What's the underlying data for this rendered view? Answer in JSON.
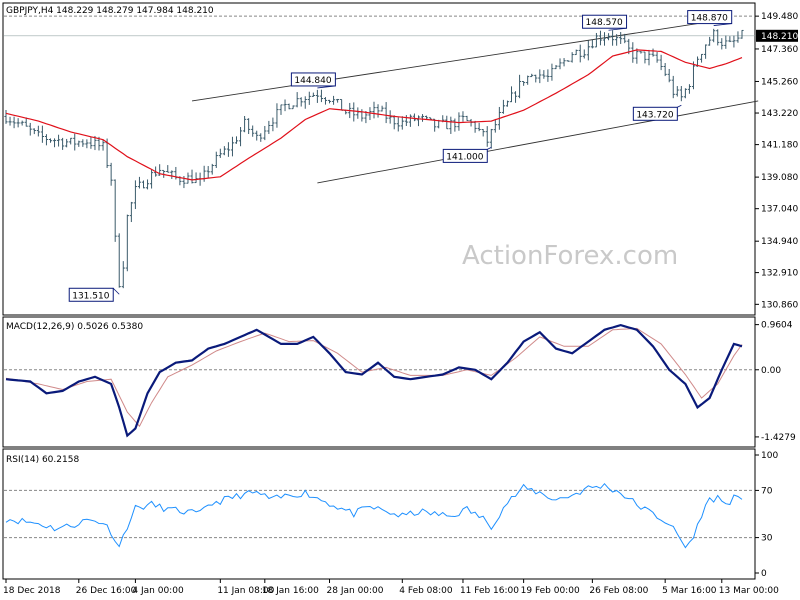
{
  "chart_data": {
    "type": "candlestick",
    "colors": {
      "price": "#3a5a6a",
      "ma": "#e0101a",
      "channel": "#333333",
      "macd": "#0a1a7a",
      "signal": "#d08a8a",
      "rsi": "#1e90ff",
      "grid_dash": "#888888",
      "label_box": "#0a1a7a"
    },
    "watermark": "ActionForex.com",
    "price_panel": {
      "title": "GBPJPY,H4  148.229 148.279 147.984 148.210",
      "ylim": [
        130.3,
        150.2
      ],
      "ticks": [
        "149.480",
        "147.360",
        "145.260",
        "143.220",
        "141.180",
        "139.080",
        "137.040",
        "134.940",
        "132.910",
        "130.860"
      ],
      "tick_values": [
        149.48,
        147.36,
        145.26,
        143.22,
        141.18,
        139.08,
        137.04,
        134.94,
        132.91,
        130.86
      ],
      "current_price": "148.210",
      "current_value": 148.21,
      "dashed_level": 149.48,
      "annotations": [
        {
          "text": "131.510",
          "bar": 28,
          "value": 131.51
        },
        {
          "text": "144.840",
          "bar": 77,
          "value": 144.84
        },
        {
          "text": "141.000",
          "bar": 120,
          "value": 141.0
        },
        {
          "text": "148.570",
          "bar": 149,
          "value": 148.57
        },
        {
          "text": "143.720",
          "bar": 167,
          "value": 143.72
        },
        {
          "text": "148.870",
          "bar": 175,
          "value": 148.87
        }
      ],
      "channel_lines": [
        {
          "from": [
            46,
            144.0
          ],
          "to": [
            176,
            149.2
          ]
        },
        {
          "from": [
            77,
            138.7
          ],
          "to": [
            186,
            144.0
          ]
        }
      ]
    },
    "macd_panel": {
      "title": "MACD(12,26,9) 0.5026 0.5380",
      "ylim": [
        -1.6,
        1.08
      ],
      "ticks": [
        "0.9604",
        "0.00",
        "-1.4279"
      ],
      "tick_values": [
        0.9604,
        0.0,
        -1.4279
      ]
    },
    "rsi_panel": {
      "title": "RSI(14) 60.2158",
      "ylim": [
        0,
        100
      ],
      "ticks": [
        "100",
        "70",
        "30",
        "0"
      ],
      "tick_values": [
        100,
        70,
        30,
        0
      ]
    },
    "x_labels": [
      "18 Dec 2018",
      "26 Dec 16:00",
      "4 Jan 00:00",
      "11 Jan 08:00",
      "18 Jan 16:00",
      "28 Jan 00:00",
      "4 Feb 08:00",
      "11 Feb 16:00",
      "19 Feb 00:00",
      "26 Feb 08:00",
      "5 Mar 16:00",
      "13 Mar 00:00"
    ],
    "x_label_bars": [
      0,
      18,
      32,
      53,
      64,
      80,
      98,
      113,
      128,
      145,
      163,
      177
    ],
    "n_bars": 183,
    "price_anchors": [
      [
        0,
        143.0
      ],
      [
        4,
        142.4
      ],
      [
        8,
        141.7
      ],
      [
        12,
        141.5
      ],
      [
        16,
        141.3
      ],
      [
        20,
        141.4
      ],
      [
        24,
        141.0
      ],
      [
        26,
        139.0
      ],
      [
        27,
        135.0
      ],
      [
        28,
        132.3
      ],
      [
        29,
        133.5
      ],
      [
        30,
        136.5
      ],
      [
        32,
        138.2
      ],
      [
        35,
        139.0
      ],
      [
        38,
        139.6
      ],
      [
        42,
        139.0
      ],
      [
        46,
        139.0
      ],
      [
        48,
        138.7
      ],
      [
        50,
        139.6
      ],
      [
        53,
        140.5
      ],
      [
        56,
        141.2
      ],
      [
        59,
        142.5
      ],
      [
        62,
        141.6
      ],
      [
        65,
        142.6
      ],
      [
        69,
        143.7
      ],
      [
        73,
        144.2
      ],
      [
        77,
        144.5
      ],
      [
        80,
        144.2
      ],
      [
        84,
        143.3
      ],
      [
        88,
        143.0
      ],
      [
        92,
        143.4
      ],
      [
        95,
        142.8
      ],
      [
        98,
        142.6
      ],
      [
        102,
        142.9
      ],
      [
        106,
        142.4
      ],
      [
        110,
        142.5
      ],
      [
        113,
        142.8
      ],
      [
        116,
        142.4
      ],
      [
        119,
        141.4
      ],
      [
        122,
        143.0
      ],
      [
        125,
        144.2
      ],
      [
        128,
        145.4
      ],
      [
        131,
        145.8
      ],
      [
        134,
        145.5
      ],
      [
        137,
        146.3
      ],
      [
        140,
        147.1
      ],
      [
        143,
        147.3
      ],
      [
        146,
        148.1
      ],
      [
        149,
        148.3
      ],
      [
        152,
        147.8
      ],
      [
        155,
        147.0
      ],
      [
        158,
        146.9
      ],
      [
        161,
        146.6
      ],
      [
        163,
        145.8
      ],
      [
        165,
        144.6
      ],
      [
        167,
        144.2
      ],
      [
        169,
        145.2
      ],
      [
        171,
        146.8
      ],
      [
        173,
        147.7
      ],
      [
        175,
        148.3
      ],
      [
        177,
        147.8
      ],
      [
        179,
        147.6
      ],
      [
        182,
        148.21
      ]
    ],
    "ma_anchors": [
      [
        0,
        143.2
      ],
      [
        8,
        142.7
      ],
      [
        16,
        142.0
      ],
      [
        24,
        141.5
      ],
      [
        30,
        140.4
      ],
      [
        38,
        139.3
      ],
      [
        46,
        138.9
      ],
      [
        53,
        139.1
      ],
      [
        60,
        140.3
      ],
      [
        68,
        141.6
      ],
      [
        74,
        142.8
      ],
      [
        80,
        143.5
      ],
      [
        88,
        143.3
      ],
      [
        96,
        143.0
      ],
      [
        104,
        142.8
      ],
      [
        112,
        142.6
      ],
      [
        120,
        142.7
      ],
      [
        128,
        143.4
      ],
      [
        136,
        144.5
      ],
      [
        144,
        145.7
      ],
      [
        150,
        146.9
      ],
      [
        156,
        147.3
      ],
      [
        162,
        147.2
      ],
      [
        168,
        146.5
      ],
      [
        174,
        146.1
      ],
      [
        178,
        146.4
      ],
      [
        182,
        146.8
      ]
    ],
    "macd_anchors": [
      [
        0,
        -0.2
      ],
      [
        6,
        -0.25
      ],
      [
        10,
        -0.5
      ],
      [
        14,
        -0.45
      ],
      [
        18,
        -0.25
      ],
      [
        22,
        -0.15
      ],
      [
        26,
        -0.3
      ],
      [
        28,
        -0.8
      ],
      [
        30,
        -1.4
      ],
      [
        32,
        -1.25
      ],
      [
        35,
        -0.5
      ],
      [
        38,
        -0.05
      ],
      [
        42,
        0.15
      ],
      [
        46,
        0.2
      ],
      [
        50,
        0.45
      ],
      [
        54,
        0.55
      ],
      [
        58,
        0.7
      ],
      [
        62,
        0.85
      ],
      [
        64,
        0.75
      ],
      [
        68,
        0.55
      ],
      [
        72,
        0.55
      ],
      [
        76,
        0.7
      ],
      [
        80,
        0.35
      ],
      [
        84,
        -0.05
      ],
      [
        88,
        -0.1
      ],
      [
        92,
        0.15
      ],
      [
        96,
        -0.15
      ],
      [
        100,
        -0.2
      ],
      [
        104,
        -0.15
      ],
      [
        108,
        -0.1
      ],
      [
        112,
        0.05
      ],
      [
        116,
        0.0
      ],
      [
        120,
        -0.2
      ],
      [
        124,
        0.15
      ],
      [
        128,
        0.6
      ],
      [
        132,
        0.8
      ],
      [
        136,
        0.45
      ],
      [
        140,
        0.35
      ],
      [
        144,
        0.6
      ],
      [
        148,
        0.85
      ],
      [
        152,
        0.95
      ],
      [
        156,
        0.85
      ],
      [
        160,
        0.5
      ],
      [
        164,
        0.0
      ],
      [
        168,
        -0.3
      ],
      [
        171,
        -0.8
      ],
      [
        174,
        -0.6
      ],
      [
        177,
        0.0
      ],
      [
        180,
        0.55
      ],
      [
        182,
        0.5
      ]
    ],
    "signal_anchors": [
      [
        0,
        -0.18
      ],
      [
        8,
        -0.3
      ],
      [
        14,
        -0.42
      ],
      [
        20,
        -0.25
      ],
      [
        26,
        -0.2
      ],
      [
        30,
        -0.9
      ],
      [
        33,
        -1.2
      ],
      [
        36,
        -0.7
      ],
      [
        40,
        -0.15
      ],
      [
        46,
        0.1
      ],
      [
        52,
        0.4
      ],
      [
        58,
        0.6
      ],
      [
        64,
        0.78
      ],
      [
        70,
        0.6
      ],
      [
        76,
        0.62
      ],
      [
        82,
        0.35
      ],
      [
        88,
        -0.05
      ],
      [
        94,
        0.05
      ],
      [
        100,
        -0.12
      ],
      [
        108,
        -0.12
      ],
      [
        114,
        0.0
      ],
      [
        120,
        -0.12
      ],
      [
        126,
        0.25
      ],
      [
        132,
        0.7
      ],
      [
        138,
        0.5
      ],
      [
        144,
        0.5
      ],
      [
        150,
        0.85
      ],
      [
        156,
        0.88
      ],
      [
        162,
        0.55
      ],
      [
        168,
        -0.1
      ],
      [
        172,
        -0.6
      ],
      [
        176,
        -0.3
      ],
      [
        180,
        0.3
      ],
      [
        182,
        0.54
      ]
    ],
    "rsi_anchors": [
      [
        0,
        46
      ],
      [
        4,
        44
      ],
      [
        8,
        42
      ],
      [
        12,
        38
      ],
      [
        16,
        40
      ],
      [
        20,
        45
      ],
      [
        24,
        43
      ],
      [
        26,
        35
      ],
      [
        28,
        22
      ],
      [
        30,
        40
      ],
      [
        32,
        55
      ],
      [
        36,
        58
      ],
      [
        40,
        54
      ],
      [
        44,
        52
      ],
      [
        48,
        50
      ],
      [
        50,
        58
      ],
      [
        54,
        62
      ],
      [
        58,
        66
      ],
      [
        62,
        68
      ],
      [
        66,
        62
      ],
      [
        70,
        66
      ],
      [
        74,
        68
      ],
      [
        78,
        62
      ],
      [
        82,
        56
      ],
      [
        86,
        50
      ],
      [
        90,
        56
      ],
      [
        94,
        52
      ],
      [
        98,
        48
      ],
      [
        102,
        52
      ],
      [
        106,
        50
      ],
      [
        110,
        48
      ],
      [
        114,
        54
      ],
      [
        118,
        46
      ],
      [
        120,
        40
      ],
      [
        124,
        60
      ],
      [
        128,
        72
      ],
      [
        132,
        68
      ],
      [
        136,
        62
      ],
      [
        140,
        66
      ],
      [
        144,
        72
      ],
      [
        148,
        74
      ],
      [
        152,
        68
      ],
      [
        156,
        58
      ],
      [
        160,
        50
      ],
      [
        164,
        42
      ],
      [
        168,
        22
      ],
      [
        170,
        30
      ],
      [
        172,
        50
      ],
      [
        174,
        62
      ],
      [
        176,
        64
      ],
      [
        178,
        58
      ],
      [
        180,
        64
      ],
      [
        182,
        60
      ]
    ]
  }
}
